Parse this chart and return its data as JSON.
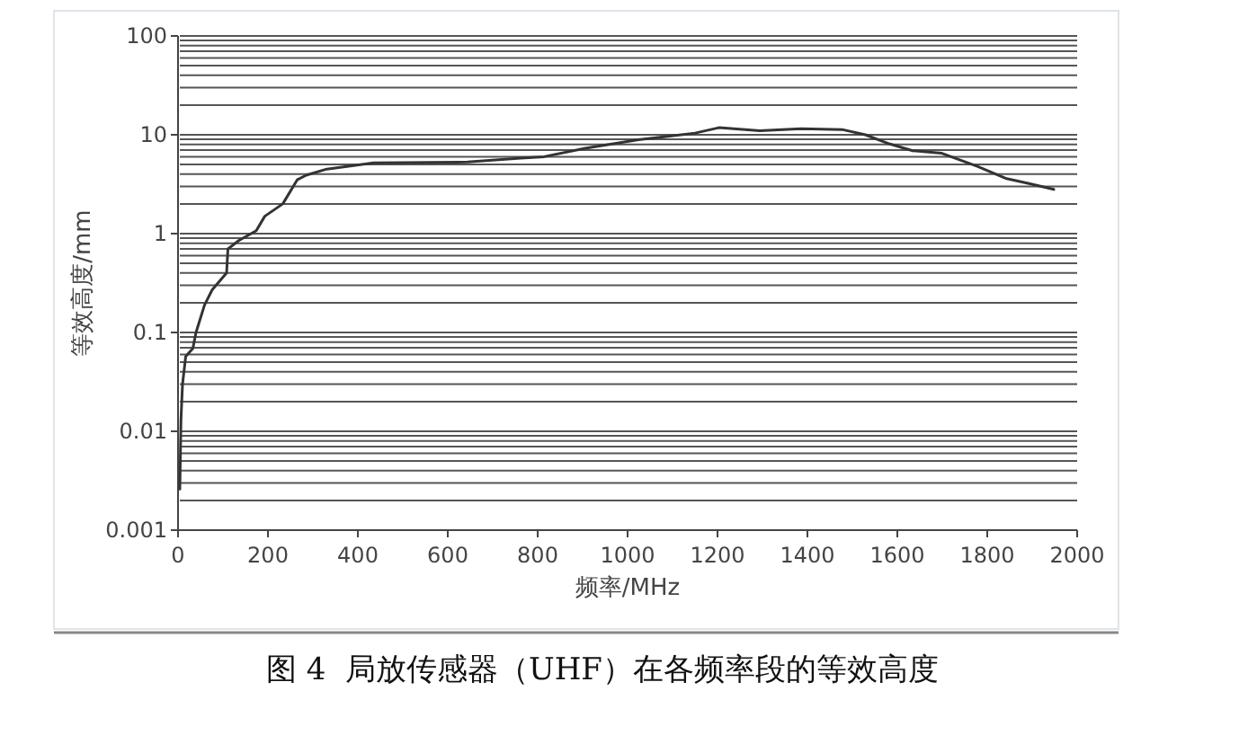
{
  "chart_data": {
    "type": "line",
    "xlabel": "频率/MHz",
    "ylabel": "等效高度/mm",
    "log": "y",
    "grid": "y",
    "xlim": [
      0,
      2000
    ],
    "xticks": [
      0,
      200,
      400,
      600,
      800,
      1000,
      1200,
      1400,
      1600,
      1800,
      2000
    ],
    "ylim": [
      0.001,
      100
    ],
    "yticks": [
      0.001,
      0.01,
      0.1,
      1,
      10,
      100
    ],
    "annotations": [
      "图 4  局放传感器（UHF）在各频率段的等效高度"
    ],
    "series": [
      {
        "color": "#333333",
        "x": [
          4,
          6.5,
          10,
          17,
          33,
          40,
          59,
          76,
          108,
          111,
          135,
          174,
          193,
          233,
          265,
          285,
          331,
          435,
          644,
          762,
          814,
          906,
          1024,
          1085,
          1150,
          1203,
          1294,
          1386,
          1477,
          1529,
          1582,
          1634,
          1699,
          1778,
          1843,
          1895,
          1948
        ],
        "values": [
          0.0026,
          0.013,
          0.03,
          0.057,
          0.069,
          0.1,
          0.19,
          0.27,
          0.4,
          0.7,
          0.85,
          1.07,
          1.5,
          2.0,
          3.5,
          3.9,
          4.5,
          5.2,
          5.3,
          5.8,
          6.0,
          7.3,
          8.9,
          9.6,
          10.4,
          11.8,
          11,
          11.5,
          11.3,
          10,
          8.1,
          6.9,
          6.5,
          4.8,
          3.6,
          3.2,
          2.8
        ]
      }
    ]
  }
}
